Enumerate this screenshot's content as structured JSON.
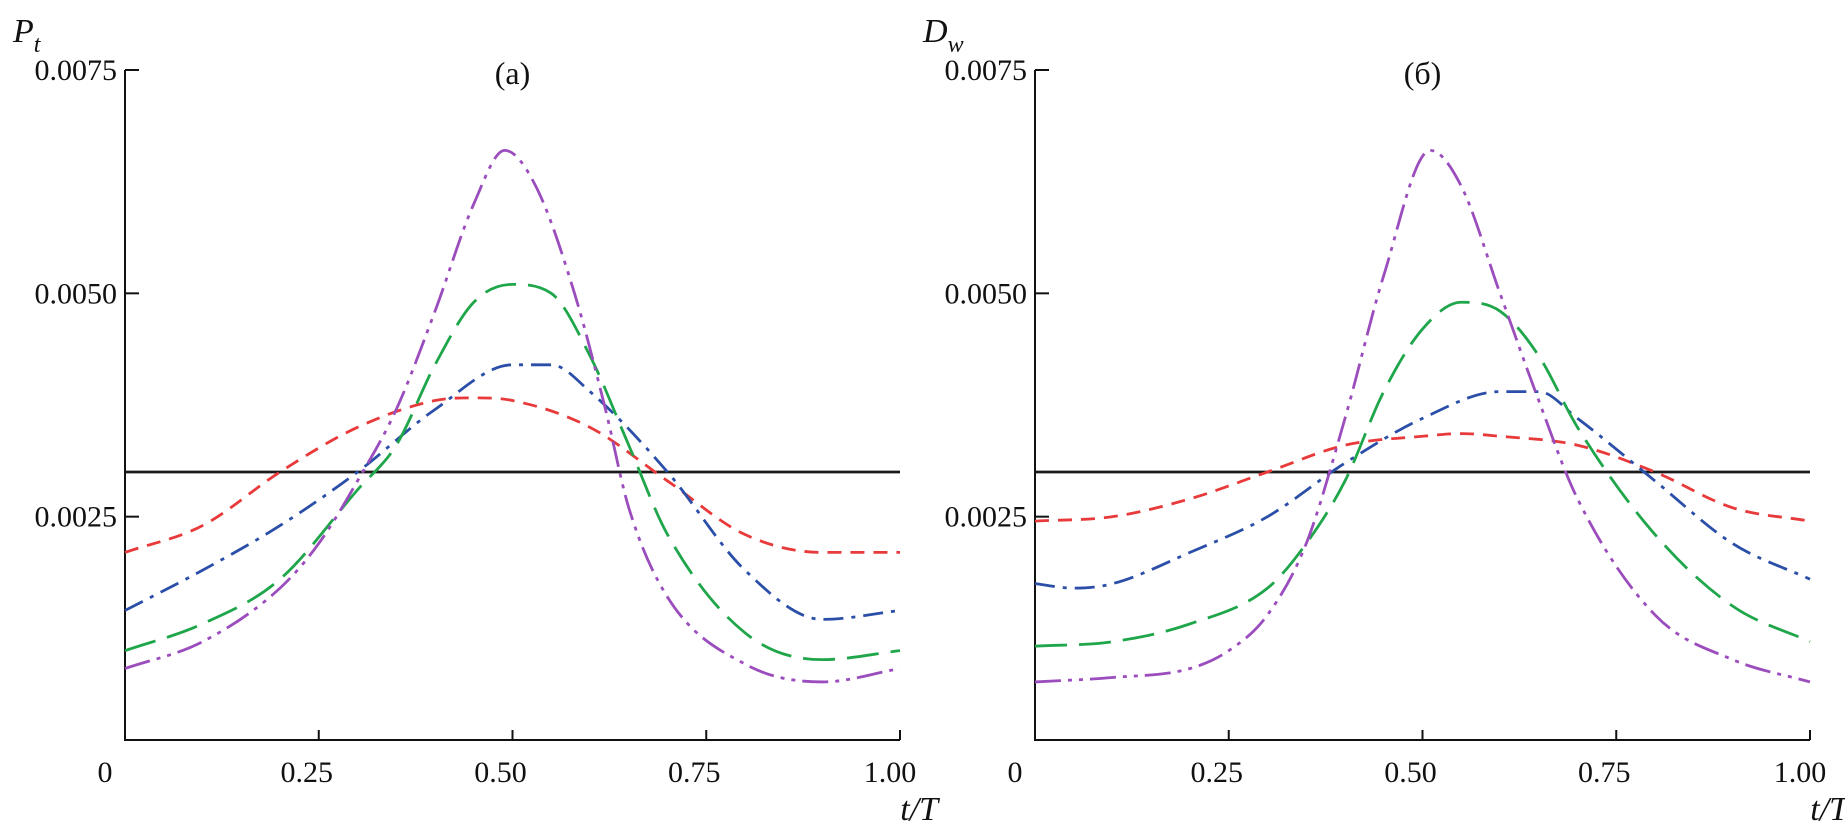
{
  "chart_data": [
    {
      "type": "line",
      "panel_label": "(а)",
      "ylabel_main": "P",
      "ylabel_sub": "t",
      "xlabel": "t/T",
      "xlim": [
        0,
        1
      ],
      "ylim": [
        0,
        0.0075
      ],
      "x_ticks": [
        0,
        0.25,
        0.5,
        0.75,
        1.0
      ],
      "x_tick_labels": [
        "0",
        "0.25",
        "0.50",
        "0.75",
        "1.00"
      ],
      "y_ticks": [
        0.0025,
        0.005,
        0.0075
      ],
      "y_tick_labels": [
        "0.0025",
        "0.0050",
        "0.0075"
      ],
      "series": [
        {
          "name": "steady",
          "color": "#1a1a1a",
          "dash": "solid",
          "x": [
            0,
            1
          ],
          "y": [
            0.003,
            0.003
          ]
        },
        {
          "name": "red-dashed",
          "color": "#e83a3a",
          "dash": "short-dash",
          "x": [
            0,
            0.1,
            0.2,
            0.3,
            0.4,
            0.45,
            0.5,
            0.6,
            0.7,
            0.8,
            0.9,
            1.0
          ],
          "y": [
            0.0021,
            0.0024,
            0.003,
            0.0035,
            0.0038,
            0.00383,
            0.0038,
            0.0035,
            0.0029,
            0.0023,
            0.0021,
            0.0021
          ]
        },
        {
          "name": "blue-dashdot",
          "color": "#2b4fa8",
          "dash": "dash-dot",
          "x": [
            0,
            0.1,
            0.2,
            0.3,
            0.4,
            0.5,
            0.55,
            0.6,
            0.7,
            0.8,
            0.9,
            1.0
          ],
          "y": [
            0.00145,
            0.0019,
            0.0024,
            0.003,
            0.0037,
            0.0042,
            0.0042,
            0.0039,
            0.003,
            0.0019,
            0.00135,
            0.00145
          ]
        },
        {
          "name": "green-longdash",
          "color": "#1fa64a",
          "dash": "long-dash",
          "x": [
            0,
            0.1,
            0.2,
            0.3,
            0.35,
            0.4,
            0.45,
            0.5,
            0.55,
            0.6,
            0.65,
            0.7,
            0.8,
            0.9,
            1.0
          ],
          "y": [
            0.001,
            0.0013,
            0.0018,
            0.0028,
            0.0033,
            0.0042,
            0.0049,
            0.0051,
            0.005,
            0.0043,
            0.0033,
            0.0023,
            0.0012,
            0.0009,
            0.001
          ]
        },
        {
          "name": "purple-dashdotdot",
          "color": "#9b4dbd",
          "dash": "dash-dot-dot",
          "x": [
            0,
            0.1,
            0.2,
            0.25,
            0.3,
            0.35,
            0.4,
            0.45,
            0.49,
            0.53,
            0.58,
            0.62,
            0.65,
            0.7,
            0.8,
            0.9,
            1.0
          ],
          "y": [
            0.0008,
            0.0011,
            0.0017,
            0.0022,
            0.0029,
            0.0037,
            0.0048,
            0.006,
            0.0066,
            0.0062,
            0.005,
            0.0037,
            0.0026,
            0.0016,
            0.00085,
            0.00065,
            0.0008
          ]
        }
      ]
    },
    {
      "type": "line",
      "panel_label": "(б)",
      "ylabel_main": "D",
      "ylabel_sub": "w",
      "xlabel": "t/T",
      "xlim": [
        0,
        1
      ],
      "ylim": [
        0,
        0.0075
      ],
      "x_ticks": [
        0,
        0.25,
        0.5,
        0.75,
        1.0
      ],
      "x_tick_labels": [
        "0",
        "0.25",
        "0.50",
        "0.75",
        "1.00"
      ],
      "y_ticks": [
        0.0025,
        0.005,
        0.0075
      ],
      "y_tick_labels": [
        "0.0025",
        "0.0050",
        "0.0075"
      ],
      "series": [
        {
          "name": "steady",
          "color": "#1a1a1a",
          "dash": "solid",
          "x": [
            0,
            1
          ],
          "y": [
            0.003,
            0.003
          ]
        },
        {
          "name": "red-dashed",
          "color": "#e83a3a",
          "dash": "short-dash",
          "x": [
            0,
            0.1,
            0.2,
            0.3,
            0.4,
            0.5,
            0.55,
            0.6,
            0.7,
            0.8,
            0.9,
            1.0
          ],
          "y": [
            0.00245,
            0.0025,
            0.0027,
            0.003,
            0.0033,
            0.0034,
            0.00343,
            0.0034,
            0.0033,
            0.003,
            0.0026,
            0.00245
          ]
        },
        {
          "name": "blue-dashdot",
          "color": "#2b4fa8",
          "dash": "dash-dot",
          "x": [
            0,
            0.05,
            0.1,
            0.2,
            0.3,
            0.4,
            0.5,
            0.6,
            0.65,
            0.7,
            0.8,
            0.9,
            1.0
          ],
          "y": [
            0.00175,
            0.0017,
            0.00175,
            0.0021,
            0.0025,
            0.0031,
            0.0036,
            0.0039,
            0.0039,
            0.0036,
            0.0029,
            0.0022,
            0.0018
          ]
        },
        {
          "name": "green-longdash",
          "color": "#1fa64a",
          "dash": "long-dash",
          "x": [
            0,
            0.1,
            0.2,
            0.3,
            0.35,
            0.4,
            0.45,
            0.5,
            0.55,
            0.6,
            0.65,
            0.7,
            0.8,
            0.9,
            1.0
          ],
          "y": [
            0.00105,
            0.0011,
            0.0013,
            0.0017,
            0.0022,
            0.0029,
            0.0039,
            0.0046,
            0.0049,
            0.0048,
            0.0043,
            0.0035,
            0.0023,
            0.0015,
            0.0011
          ]
        },
        {
          "name": "purple-dashdotdot",
          "color": "#9b4dbd",
          "dash": "dash-dot-dot",
          "x": [
            0,
            0.1,
            0.2,
            0.25,
            0.3,
            0.35,
            0.4,
            0.45,
            0.51,
            0.55,
            0.6,
            0.65,
            0.7,
            0.8,
            0.9,
            1.0
          ],
          "y": [
            0.00065,
            0.0007,
            0.0008,
            0.001,
            0.0014,
            0.0022,
            0.0036,
            0.0052,
            0.0066,
            0.0062,
            0.005,
            0.0038,
            0.0027,
            0.0014,
            0.0009,
            0.00065
          ]
        }
      ]
    }
  ]
}
